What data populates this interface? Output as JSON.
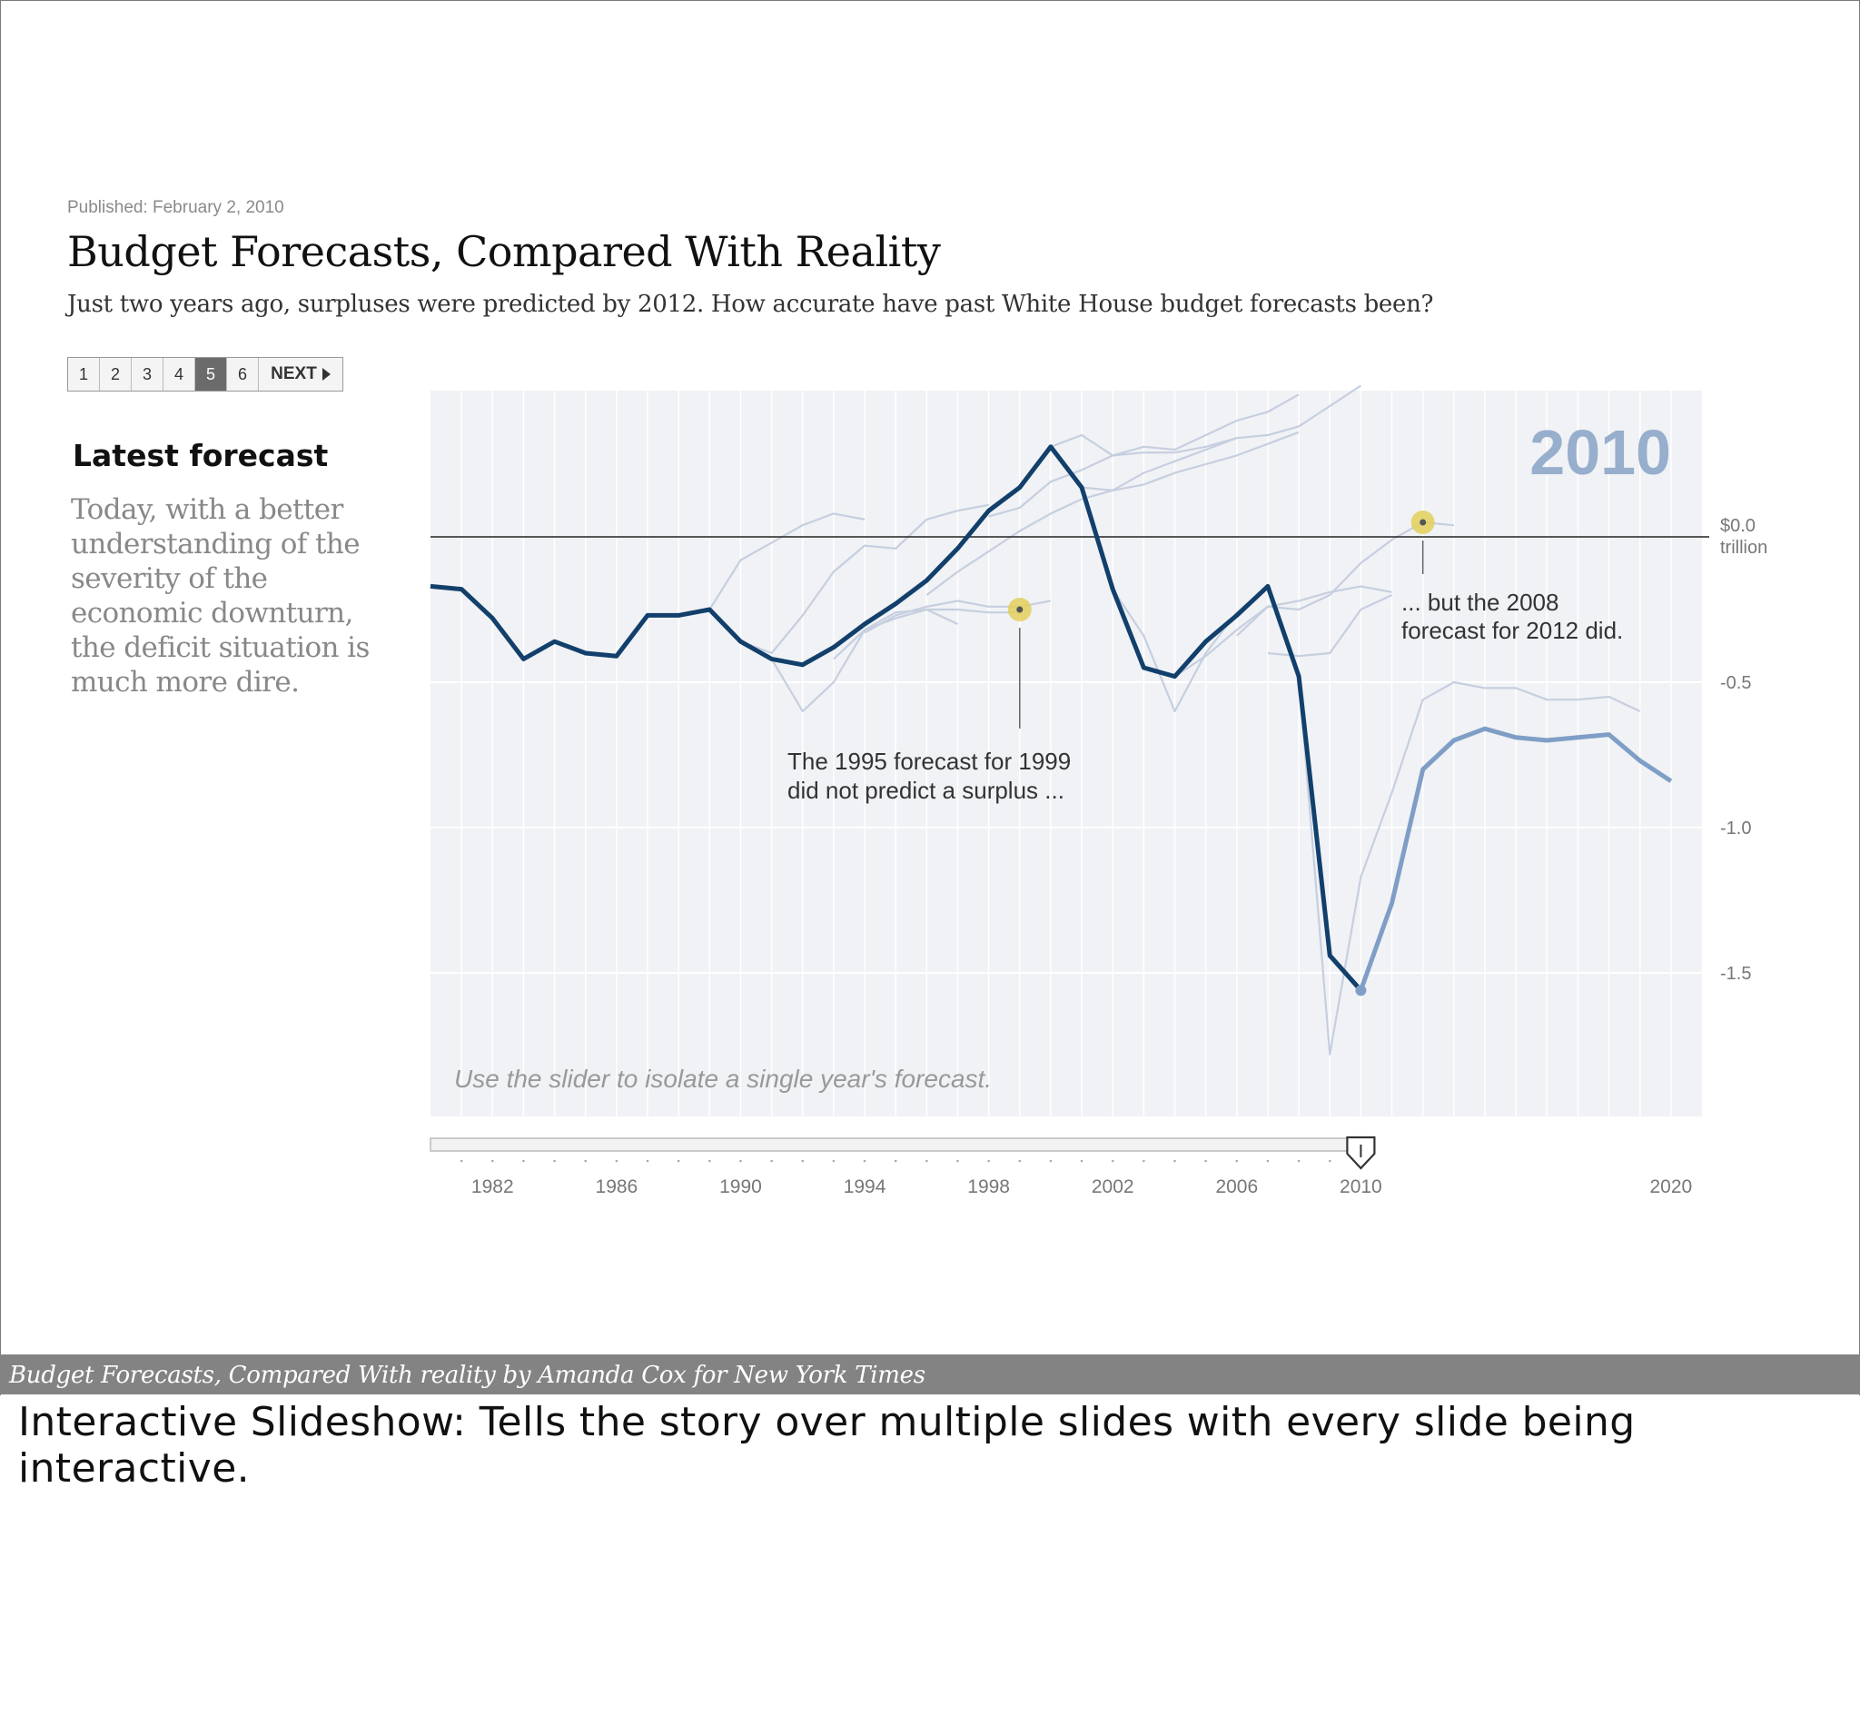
{
  "article": {
    "published": "Published: February 2, 2010",
    "title": "Budget Forecasts, Compared With Reality",
    "subtitle": "Just two years ago, surpluses were predicted by 2012. How accurate have past White House budget forecasts been?"
  },
  "pager": {
    "pages": [
      "1",
      "2",
      "3",
      "4",
      "5",
      "6"
    ],
    "active_page": "5",
    "next_label": "NEXT"
  },
  "sidebar": {
    "title": "Latest forecast",
    "text": "Today, with a better understanding of the severity of the economic downturn, the deficit situation is much more dire."
  },
  "colors": {
    "plot_background": "#f0f2f5",
    "actual_line": "#123f6b",
    "latest_forecast_line": "#7f9ec6",
    "past_forecast_lines": "#c6cfdf",
    "highlight": "#e3cf5a",
    "year_label": "#97aecd"
  },
  "chart_data": {
    "type": "line",
    "year_label": "2010",
    "y_unit_label_top": "$0.0",
    "y_unit_label_bottom": "trillion",
    "ylim": [
      -1.9,
      0.5
    ],
    "xlim": [
      1980,
      2021
    ],
    "y_ticks": [
      "-0.5",
      "-1.0",
      "-1.5"
    ],
    "x_ticks": [
      "1982",
      "1986",
      "1990",
      "1994",
      "1998",
      "2002",
      "2006",
      "2010",
      "2020"
    ],
    "hint": "Use the slider to isolate a single year's forecast.",
    "annotations": [
      {
        "text_line1": "The 1995 forecast for 1999",
        "text_line2": "did not predict a surplus ...",
        "year": 1999,
        "value": -0.25
      },
      {
        "text_line1": "... but the 2008",
        "text_line2": "forecast for 2012 did.",
        "year": 2012,
        "value": 0.05
      }
    ],
    "series": [
      {
        "role": "actual",
        "x": [
          1980,
          1981,
          1982,
          1983,
          1984,
          1985,
          1986,
          1987,
          1988,
          1989,
          1990,
          1991,
          1992,
          1993,
          1994,
          1995,
          1996,
          1997,
          1998,
          1999,
          2000,
          2001,
          2002,
          2003,
          2004,
          2005,
          2006,
          2007,
          2008,
          2009,
          2010
        ],
        "y": [
          -0.17,
          -0.18,
          -0.28,
          -0.42,
          -0.36,
          -0.4,
          -0.41,
          -0.27,
          -0.27,
          -0.25,
          -0.36,
          -0.42,
          -0.44,
          -0.38,
          -0.3,
          -0.23,
          -0.15,
          -0.04,
          0.09,
          0.17,
          0.31,
          0.17,
          -0.18,
          -0.45,
          -0.48,
          -0.36,
          -0.27,
          -0.17,
          -0.48,
          -1.44,
          -1.56
        ]
      },
      {
        "role": "latest_forecast",
        "x": [
          2010,
          2011,
          2012,
          2013,
          2014,
          2015,
          2016,
          2017,
          2018,
          2019,
          2020
        ],
        "y": [
          -1.56,
          -1.26,
          -0.8,
          -0.7,
          -0.66,
          -0.69,
          -0.7,
          -0.69,
          -0.68,
          -0.77,
          -0.84
        ]
      },
      {
        "role": "past_forecast",
        "x": [
          1989,
          1990,
          1991,
          1992,
          1993,
          1994
        ],
        "y": [
          -0.25,
          -0.08,
          -0.02,
          0.04,
          0.08,
          0.06
        ]
      },
      {
        "role": "past_forecast",
        "x": [
          1990,
          1991,
          1992,
          1993,
          1994,
          1995,
          1996,
          1997,
          1998
        ],
        "y": [
          -0.36,
          -0.4,
          -0.27,
          -0.12,
          -0.03,
          -0.04,
          0.06,
          0.09,
          0.11
        ]
      },
      {
        "role": "past_forecast",
        "x": [
          1991,
          1992,
          1993,
          1994,
          1995,
          1996,
          1997
        ],
        "y": [
          -0.42,
          -0.6,
          -0.5,
          -0.32,
          -0.28,
          -0.25,
          -0.3
        ]
      },
      {
        "role": "past_forecast",
        "x": [
          1993,
          1994,
          1995,
          1996,
          1997,
          1998,
          1999
        ],
        "y": [
          -0.42,
          -0.32,
          -0.26,
          -0.25,
          -0.25,
          -0.26,
          -0.26
        ]
      },
      {
        "role": "past_forecast",
        "x": [
          1994,
          1995,
          1996,
          1997,
          1998,
          1999,
          2000
        ],
        "y": [
          -0.33,
          -0.27,
          -0.24,
          -0.22,
          -0.24,
          -0.24,
          -0.22
        ]
      },
      {
        "role": "past_forecast",
        "x": [
          1996,
          1997,
          1998,
          1999,
          2000,
          2001,
          2002,
          2003,
          2004,
          2005,
          2006
        ],
        "y": [
          -0.2,
          -0.12,
          -0.05,
          0.02,
          0.08,
          0.13,
          0.16,
          0.22,
          0.26,
          0.3,
          0.34
        ]
      },
      {
        "role": "past_forecast",
        "x": [
          1998,
          1999,
          2000,
          2001,
          2002,
          2003,
          2004,
          2005,
          2006,
          2007,
          2008
        ],
        "y": [
          0.07,
          0.1,
          0.19,
          0.23,
          0.28,
          0.31,
          0.3,
          0.35,
          0.4,
          0.43,
          0.49
        ]
      },
      {
        "role": "past_forecast",
        "x": [
          2000,
          2001,
          2002,
          2003,
          2004,
          2005,
          2006,
          2007,
          2008,
          2009,
          2010
        ],
        "y": [
          0.31,
          0.35,
          0.28,
          0.29,
          0.29,
          0.31,
          0.34,
          0.35,
          0.38,
          0.45,
          0.52
        ]
      },
      {
        "role": "past_forecast",
        "x": [
          2001,
          2002,
          2003,
          2004,
          2005,
          2006,
          2007,
          2008
        ],
        "y": [
          0.17,
          0.16,
          0.18,
          0.22,
          0.25,
          0.28,
          0.32,
          0.36
        ]
      },
      {
        "role": "past_forecast",
        "x": [
          2002,
          2003,
          2004,
          2005,
          2006,
          2007
        ],
        "y": [
          -0.18,
          -0.34,
          -0.6,
          -0.4,
          -0.26,
          -0.17
        ]
      },
      {
        "role": "past_forecast",
        "x": [
          2004,
          2005,
          2006,
          2007,
          2008,
          2009,
          2010,
          2011
        ],
        "y": [
          -0.48,
          -0.41,
          -0.32,
          -0.24,
          -0.22,
          -0.19,
          -0.17,
          -0.19
        ]
      },
      {
        "role": "past_forecast",
        "x": [
          2006,
          2007,
          2008,
          2009,
          2010,
          2011,
          2012,
          2013
        ],
        "y": [
          -0.34,
          -0.24,
          -0.25,
          -0.2,
          -0.09,
          -0.01,
          0.05,
          0.04
        ]
      },
      {
        "role": "past_forecast",
        "x": [
          2007,
          2008,
          2009,
          2010,
          2011
        ],
        "y": [
          -0.4,
          -0.41,
          -0.4,
          -0.25,
          -0.2
        ]
      },
      {
        "role": "past_forecast",
        "x": [
          2008,
          2009,
          2010,
          2011,
          2012,
          2013,
          2014,
          2015,
          2016,
          2017,
          2018,
          2019
        ],
        "y": [
          -0.48,
          -1.78,
          -1.17,
          -0.88,
          -0.56,
          -0.5,
          -0.52,
          -0.52,
          -0.56,
          -0.56,
          -0.55,
          -0.6
        ]
      }
    ]
  },
  "caption": "Budget Forecasts, Compared With reality by Amanda Cox for New York Times",
  "bottom_note": "Interactive Slideshow: Tells the story over multiple slides with every slide being interactive."
}
